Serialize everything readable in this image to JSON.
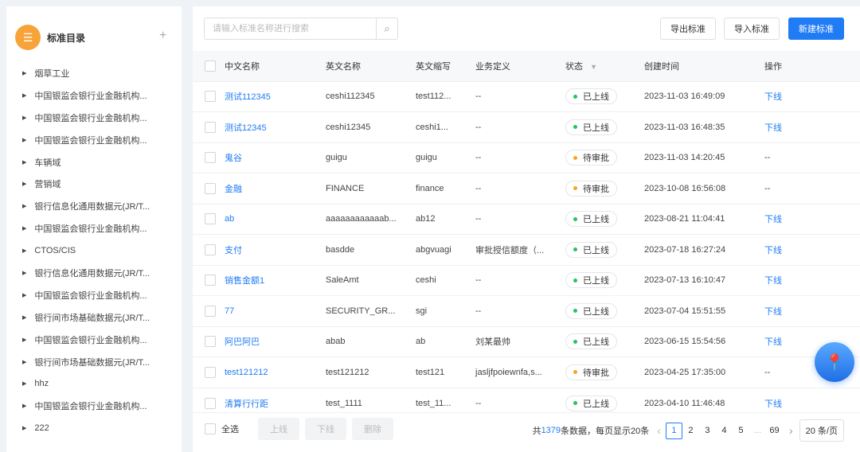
{
  "sidebar": {
    "title": "标准目录",
    "add_icon": "plus-icon",
    "logo_icon": "list-icon",
    "items": [
      "烟草工业",
      "中国银监会银行业金融机构...",
      "中国银监会银行业金融机构...",
      "中国银监会银行业金融机构...",
      "车辆域",
      "营销域",
      "银行信息化通用数据元(JR/T...",
      "中国银监会银行业金融机构...",
      "CTOS/CIS",
      "银行信息化通用数据元(JR/T...",
      "中国银监会银行业金融机构...",
      "银行间市场基础数据元(JR/T...",
      "中国银监会银行业金融机构...",
      "银行间市场基础数据元(JR/T...",
      "hhz",
      "中国银监会银行业金融机构...",
      "222"
    ]
  },
  "toolbar": {
    "search_placeholder": "请输入标准名称进行搜索",
    "export": "导出标准",
    "import": "导入标准",
    "create": "新建标准"
  },
  "table": {
    "headers": [
      "中文名称",
      "英文名称",
      "英文缩写",
      "业务定义",
      "状态",
      "创建时间",
      "操作"
    ],
    "rows": [
      {
        "cn": "测试112345",
        "en": "ceshi112345",
        "abbr": "test112...",
        "def": "--",
        "status": "已上线",
        "time": "2023-11-03 16:49:09",
        "op": "下线"
      },
      {
        "cn": "测试12345",
        "en": "ceshi12345",
        "abbr": "ceshi1...",
        "def": "--",
        "status": "已上线",
        "time": "2023-11-03 16:48:35",
        "op": "下线"
      },
      {
        "cn": "鬼谷",
        "en": "guigu",
        "abbr": "guigu",
        "def": "--",
        "status": "待审批",
        "time": "2023-11-03 14:20:45",
        "op": "--"
      },
      {
        "cn": "金融",
        "en": "FINANCE",
        "abbr": "finance",
        "def": "--",
        "status": "待审批",
        "time": "2023-10-08 16:56:08",
        "op": "--"
      },
      {
        "cn": "ab",
        "en": "aaaaaaaaaaaab...",
        "abbr": "ab12",
        "def": "--",
        "status": "已上线",
        "time": "2023-08-21 11:04:41",
        "op": "下线"
      },
      {
        "cn": "支付",
        "en": "basdde",
        "abbr": "abgvuagi",
        "def": "审批授信额度（...",
        "status": "已上线",
        "time": "2023-07-18 16:27:24",
        "op": "下线"
      },
      {
        "cn": "销售金额1",
        "en": "SaleAmt",
        "abbr": "ceshi",
        "def": "--",
        "status": "已上线",
        "time": "2023-07-13 16:10:47",
        "op": "下线"
      },
      {
        "cn": "77",
        "en": "SECURITY_GR...",
        "abbr": "sgi",
        "def": "--",
        "status": "已上线",
        "time": "2023-07-04 15:51:55",
        "op": "下线"
      },
      {
        "cn": "阿巴阿巴",
        "en": "abab",
        "abbr": "ab",
        "def": "刘某最帅",
        "status": "已上线",
        "time": "2023-06-15 15:54:56",
        "op": "下线"
      },
      {
        "cn": "test121212",
        "en": "test121212",
        "abbr": "test121",
        "def": "jasljfpoiewnfa,s...",
        "status": "待审批",
        "time": "2023-04-25 17:35:00",
        "op": "--"
      },
      {
        "cn": "清算行行距",
        "en": "test_1111",
        "abbr": "test_11...",
        "def": "--",
        "status": "已上线",
        "time": "2023-04-10 11:46:48",
        "op": "下线"
      }
    ]
  },
  "status_colors": {
    "已上线": "#22c55e",
    "待审批": "#f5a623"
  },
  "footer": {
    "select_all": "全选",
    "online": "上线",
    "offline": "下线",
    "delete": "删除",
    "total_prefix": "共",
    "total": "1379",
    "total_suffix": "条数据，每页显示20条",
    "pages": [
      "1",
      "2",
      "3",
      "4",
      "5",
      "...",
      "69"
    ],
    "current_page": "1",
    "page_size": "20 条/页"
  },
  "accent": "#1f7cf5",
  "fab_icon": "map-pin-icon"
}
